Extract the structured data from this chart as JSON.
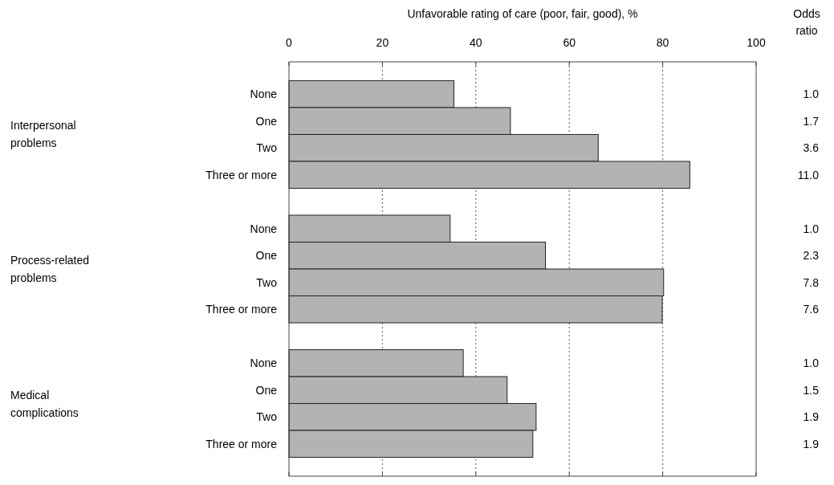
{
  "chart_data": {
    "type": "bar",
    "orientation": "horizontal",
    "xlabel": "Unfavorable rating of care (poor, fair, good), %",
    "categories": [
      "None",
      "One",
      "Two",
      "Three or more",
      null,
      "None",
      "One",
      "Two",
      "Three or more",
      null,
      "None",
      "One",
      "Two",
      "Three or more"
    ],
    "values": [
      35.3,
      47.4,
      66.2,
      85.8,
      null,
      34.5,
      54.9,
      80.2,
      79.9,
      null,
      37.3,
      46.7,
      52.9,
      52.2
    ],
    "color": "#b3b3b3",
    "xlim": [
      0,
      100
    ],
    "xticks": [
      0,
      20,
      40,
      60,
      80,
      100
    ],
    "grid": "x",
    "annotations": [
      "Interpersonal problems",
      "Process-related problems",
      "Medical complications",
      "Odds ratio",
      "1.0",
      "1.7",
      "3.6",
      "11.0",
      "1.0",
      "2.3",
      "7.8",
      "7.6",
      "1.0",
      "1.5",
      "1.9",
      "1.9"
    ]
  }
}
